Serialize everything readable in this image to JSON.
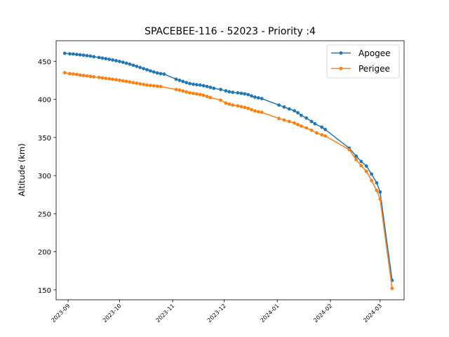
{
  "chart_data": {
    "type": "line",
    "title": "SPACEBEE-116 - 52023 - Priority :4",
    "xlabel": "",
    "ylabel": "Altitude (km)",
    "x_axis_type": "date",
    "xlim": [
      "2023-08-25",
      "2024-03-15"
    ],
    "ylim": [
      137,
      477
    ],
    "grid": false,
    "legend_position": "top-right",
    "x_ticks": [
      "2023-09-01",
      "2023-10-01",
      "2023-11-01",
      "2023-12-01",
      "2024-01-01",
      "2024-02-01",
      "2024-03-01"
    ],
    "x_tick_labels": [
      "2023-09",
      "2023-10",
      "2023-11",
      "2023-12",
      "2024-01",
      "2024-02",
      "2024-03"
    ],
    "y_ticks": [
      150,
      200,
      250,
      300,
      350,
      400,
      450
    ],
    "y_tick_labels": [
      "150",
      "200",
      "250",
      "300",
      "350",
      "400",
      "450"
    ],
    "series": [
      {
        "name": "Apogee",
        "color": "#1f77b4",
        "points": [
          [
            "2023-08-30",
            460.5
          ],
          [
            "2023-09-02",
            459.8
          ],
          [
            "2023-09-04",
            459.5
          ],
          [
            "2023-09-06",
            459.0
          ],
          [
            "2023-09-08",
            458.5
          ],
          [
            "2023-09-10",
            458.0
          ],
          [
            "2023-09-12",
            457.4
          ],
          [
            "2023-09-14",
            456.8
          ],
          [
            "2023-09-16",
            456.0
          ],
          [
            "2023-09-19",
            455.0
          ],
          [
            "2023-09-21",
            454.2
          ],
          [
            "2023-09-23",
            453.4
          ],
          [
            "2023-09-25",
            452.6
          ],
          [
            "2023-09-27",
            451.7
          ],
          [
            "2023-09-29",
            450.8
          ],
          [
            "2023-10-01",
            449.8
          ],
          [
            "2023-10-03",
            448.7
          ],
          [
            "2023-10-05",
            447.5
          ],
          [
            "2023-10-07",
            446.2
          ],
          [
            "2023-10-09",
            444.8
          ],
          [
            "2023-10-11",
            443.4
          ],
          [
            "2023-10-13",
            441.9
          ],
          [
            "2023-10-15",
            440.4
          ],
          [
            "2023-10-17",
            438.9
          ],
          [
            "2023-10-19",
            437.4
          ],
          [
            "2023-10-21",
            436.0
          ],
          [
            "2023-10-23",
            434.7
          ],
          [
            "2023-10-25",
            433.8
          ],
          [
            "2023-10-27",
            433.2
          ],
          [
            "2023-11-03",
            426.5
          ],
          [
            "2023-11-05",
            425.0
          ],
          [
            "2023-11-07",
            423.5
          ],
          [
            "2023-11-09",
            422.0
          ],
          [
            "2023-11-11",
            420.8
          ],
          [
            "2023-11-13",
            419.8
          ],
          [
            "2023-11-15",
            419.3
          ],
          [
            "2023-11-17",
            418.8
          ],
          [
            "2023-11-19",
            418.0
          ],
          [
            "2023-11-21",
            417.0
          ],
          [
            "2023-11-23",
            415.8
          ],
          [
            "2023-11-25",
            414.5
          ],
          [
            "2023-11-29",
            413.0
          ],
          [
            "2023-12-02",
            411.2
          ],
          [
            "2023-12-04",
            410.0
          ],
          [
            "2023-12-06",
            409.3
          ],
          [
            "2023-12-09",
            408.6
          ],
          [
            "2023-12-11",
            408.0
          ],
          [
            "2023-12-13",
            407.3
          ],
          [
            "2023-12-15",
            406.3
          ],
          [
            "2023-12-17",
            404.5
          ],
          [
            "2023-12-19",
            403.0
          ],
          [
            "2023-12-21",
            402.0
          ],
          [
            "2023-12-23",
            401.0
          ],
          [
            "2024-01-02",
            392.5
          ],
          [
            "2024-01-05",
            390.0
          ],
          [
            "2024-01-08",
            387.5
          ],
          [
            "2024-01-11",
            385.0
          ],
          [
            "2024-01-13",
            382.5
          ],
          [
            "2024-01-15",
            379.0
          ],
          [
            "2024-01-18",
            375.5
          ],
          [
            "2024-01-21",
            371.0
          ],
          [
            "2024-01-23",
            368.0
          ],
          [
            "2024-01-27",
            363.5
          ],
          [
            "2024-01-29",
            360.5
          ],
          [
            "2024-02-12",
            336.0
          ],
          [
            "2024-02-16",
            325.5
          ],
          [
            "2024-02-19",
            318.5
          ],
          [
            "2024-02-22",
            312.5
          ],
          [
            "2024-02-25",
            302.0
          ],
          [
            "2024-02-28",
            290.5
          ],
          [
            "2024-03-01",
            278.5
          ],
          [
            "2024-03-08",
            162.5
          ]
        ]
      },
      {
        "name": "Perigee",
        "color": "#ff7f0e",
        "points": [
          [
            "2023-08-30",
            435.0
          ],
          [
            "2023-09-02",
            433.8
          ],
          [
            "2023-09-04",
            433.3
          ],
          [
            "2023-09-06",
            432.7
          ],
          [
            "2023-09-08",
            432.0
          ],
          [
            "2023-09-10",
            431.4
          ],
          [
            "2023-09-12",
            430.8
          ],
          [
            "2023-09-14",
            430.2
          ],
          [
            "2023-09-16",
            429.6
          ],
          [
            "2023-09-19",
            428.8
          ],
          [
            "2023-09-21",
            428.2
          ],
          [
            "2023-09-23",
            427.6
          ],
          [
            "2023-09-25",
            427.0
          ],
          [
            "2023-09-27",
            426.4
          ],
          [
            "2023-09-29",
            425.8
          ],
          [
            "2023-10-01",
            425.1
          ],
          [
            "2023-10-03",
            424.4
          ],
          [
            "2023-10-05",
            423.6
          ],
          [
            "2023-10-07",
            422.8
          ],
          [
            "2023-10-09",
            422.0
          ],
          [
            "2023-10-11",
            421.2
          ],
          [
            "2023-10-13",
            420.4
          ],
          [
            "2023-10-15",
            419.6
          ],
          [
            "2023-10-17",
            418.9
          ],
          [
            "2023-10-19",
            418.3
          ],
          [
            "2023-10-21",
            417.8
          ],
          [
            "2023-10-23",
            417.3
          ],
          [
            "2023-10-25",
            416.9
          ],
          [
            "2023-11-03",
            413.0
          ],
          [
            "2023-11-05",
            412.2
          ],
          [
            "2023-11-07",
            411.0
          ],
          [
            "2023-11-09",
            409.8
          ],
          [
            "2023-11-11",
            408.7
          ],
          [
            "2023-11-13",
            407.9
          ],
          [
            "2023-11-15",
            407.2
          ],
          [
            "2023-11-17",
            406.4
          ],
          [
            "2023-11-19",
            405.3
          ],
          [
            "2023-11-21",
            403.9
          ],
          [
            "2023-11-23",
            402.4
          ],
          [
            "2023-11-29",
            399.0
          ],
          [
            "2023-12-02",
            395.3
          ],
          [
            "2023-12-04",
            393.8
          ],
          [
            "2023-12-06",
            392.6
          ],
          [
            "2023-12-09",
            391.5
          ],
          [
            "2023-12-11",
            390.5
          ],
          [
            "2023-12-13",
            389.5
          ],
          [
            "2023-12-15",
            388.2
          ],
          [
            "2023-12-17",
            386.5
          ],
          [
            "2023-12-19",
            384.8
          ],
          [
            "2023-12-21",
            383.8
          ],
          [
            "2023-12-23",
            383.0
          ],
          [
            "2024-01-02",
            375.0
          ],
          [
            "2024-01-05",
            373.0
          ],
          [
            "2024-01-08",
            371.0
          ],
          [
            "2024-01-11",
            369.0
          ],
          [
            "2024-01-13",
            367.0
          ],
          [
            "2024-01-15",
            365.0
          ],
          [
            "2024-01-18",
            362.5
          ],
          [
            "2024-01-21",
            359.5
          ],
          [
            "2024-01-24",
            356.0
          ],
          [
            "2024-01-27",
            353.5
          ],
          [
            "2024-01-29",
            352.0
          ],
          [
            "2024-02-12",
            334.0
          ],
          [
            "2024-02-16",
            321.0
          ],
          [
            "2024-02-19",
            313.0
          ],
          [
            "2024-02-22",
            305.5
          ],
          [
            "2024-02-25",
            293.5
          ],
          [
            "2024-02-28",
            280.5
          ],
          [
            "2024-03-01",
            269.0
          ],
          [
            "2024-03-08",
            152.0
          ]
        ]
      }
    ]
  }
}
